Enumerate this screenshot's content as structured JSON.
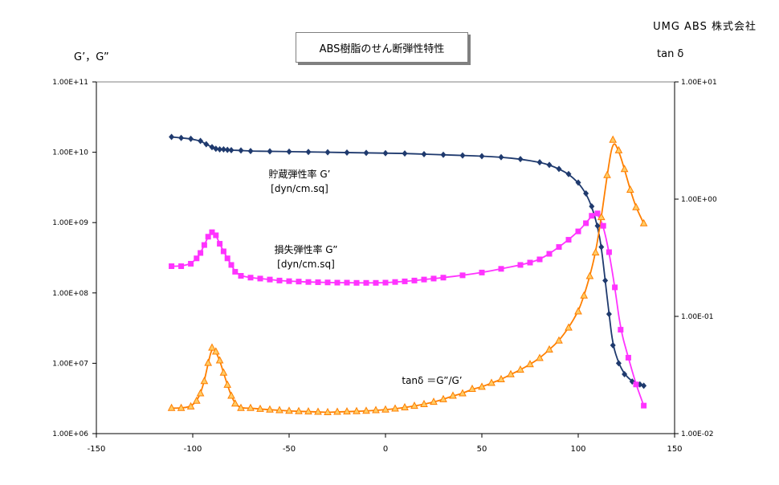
{
  "header": {
    "company": "UMG ABS 株式会社",
    "title": "ABS樹脂のせん断弾性特性",
    "left_axis_title": "G’，G”",
    "right_axis_title": "tan δ"
  },
  "chart_data": {
    "type": "scatter",
    "title": "ABS樹脂のせん断弾性特性",
    "xlim": [
      -150,
      150
    ],
    "x_ticks": [
      -150,
      -100,
      -50,
      0,
      50,
      100,
      150
    ],
    "x_tick_labels": [
      "-150",
      "-100",
      "-50",
      "0",
      "50",
      "100",
      "150"
    ],
    "y_left": {
      "label": "G’，G”",
      "scale": "log",
      "lim": [
        1000000,
        100000000000
      ],
      "ticks": [
        1000000,
        10000000,
        100000000,
        1000000000,
        10000000000,
        100000000000
      ],
      "tick_labels": [
        "1.00E+06",
        "1.00E+07",
        "1.00E+08",
        "1.00E+09",
        "1.00E+10",
        "1.00E+11"
      ]
    },
    "y_right": {
      "label": "tan δ",
      "scale": "log",
      "lim": [
        0.01,
        10
      ],
      "ticks": [
        0.01,
        0.1,
        1,
        10
      ],
      "tick_labels": [
        "1.00E-02",
        "1.00E-01",
        "1.00E+00",
        "1.00E+01"
      ]
    },
    "grid": false,
    "legend": "none",
    "annotations": [
      {
        "series": "storage",
        "lines": [
          "貯蔵弾性率 G’",
          "[dyn/cm.sq]"
        ]
      },
      {
        "series": "loss",
        "lines": [
          "損失弾性率 G”",
          "[dyn/cm.sq]"
        ]
      },
      {
        "series": "tand",
        "lines": [
          "tanδ ＝G”/G’"
        ]
      }
    ],
    "series": [
      {
        "key": "storage",
        "axis": "left",
        "marker": "diamond",
        "color": "#1f3a6e",
        "x": [
          -111,
          -106,
          -101,
          -96,
          -93,
          -90,
          -88,
          -86,
          -84,
          -82,
          -80,
          -75,
          -70,
          -60,
          -50,
          -40,
          -30,
          -20,
          -10,
          0,
          10,
          20,
          30,
          40,
          50,
          60,
          70,
          80,
          85,
          90,
          95,
          100,
          104,
          107,
          110,
          112,
          114,
          116,
          118,
          121,
          124,
          128,
          132,
          134
        ],
        "y": [
          16500000000.0,
          16000000000.0,
          15500000000.0,
          14500000000.0,
          13000000000.0,
          11800000000.0,
          11200000000.0,
          11000000000.0,
          11000000000.0,
          10800000000.0,
          10700000000.0,
          10600000000.0,
          10400000000.0,
          10300000000.0,
          10200000000.0,
          10100000000.0,
          10000000000.0,
          9900000000.0,
          9800000000.0,
          9700000000.0,
          9600000000.0,
          9400000000.0,
          9200000000.0,
          9000000000.0,
          8800000000.0,
          8500000000.0,
          8000000000.0,
          7200000000.0,
          6600000000.0,
          5800000000.0,
          4900000000.0,
          3700000000.0,
          2600000000.0,
          1700000000.0,
          900000000.0,
          450000000.0,
          150000000.0,
          50000000.0,
          18000000.0,
          10000000.0,
          7000000.0,
          5500000.0,
          5000000.0,
          4800000.0
        ]
      },
      {
        "key": "loss",
        "axis": "left",
        "marker": "square",
        "color": "#ff33ff",
        "x": [
          -111,
          -106,
          -101,
          -98,
          -96,
          -94,
          -92,
          -90,
          -88,
          -86,
          -84,
          -82,
          -80,
          -78,
          -75,
          -70,
          -65,
          -60,
          -55,
          -50,
          -45,
          -40,
          -35,
          -30,
          -25,
          -20,
          -15,
          -10,
          -5,
          0,
          5,
          10,
          15,
          20,
          25,
          30,
          40,
          50,
          60,
          70,
          75,
          80,
          85,
          90,
          95,
          100,
          104,
          107,
          110,
          113,
          116,
          119,
          122,
          126,
          130,
          134
        ],
        "y": [
          240000000.0,
          240000000.0,
          260000000.0,
          310000000.0,
          370000000.0,
          480000000.0,
          630000000.0,
          730000000.0,
          660000000.0,
          500000000.0,
          390000000.0,
          310000000.0,
          250000000.0,
          200000000.0,
          175000000.0,
          165000000.0,
          160000000.0,
          155000000.0,
          150000000.0,
          147000000.0,
          145000000.0,
          143000000.0,
          142000000.0,
          141000000.0,
          140000000.0,
          140000000.0,
          139000000.0,
          139000000.0,
          139000000.0,
          140000000.0,
          143000000.0,
          146000000.0,
          150000000.0,
          155000000.0,
          160000000.0,
          165000000.0,
          178000000.0,
          195000000.0,
          220000000.0,
          250000000.0,
          270000000.0,
          300000000.0,
          360000000.0,
          450000000.0,
          570000000.0,
          750000000.0,
          980000000.0,
          1250000000.0,
          1350000000.0,
          900000000.0,
          380000000.0,
          120000000.0,
          30000000.0,
          12000000.0,
          5000000.0,
          2500000.0
        ]
      },
      {
        "key": "tand",
        "axis": "right",
        "marker": "triangle",
        "color": "#ff7f00",
        "fill": "#ffcc66",
        "x": [
          -111,
          -106,
          -101,
          -98,
          -96,
          -94,
          -92,
          -90,
          -88,
          -86,
          -84,
          -82,
          -80,
          -78,
          -75,
          -70,
          -65,
          -60,
          -55,
          -50,
          -45,
          -40,
          -35,
          -30,
          -25,
          -20,
          -15,
          -10,
          -5,
          0,
          5,
          10,
          15,
          20,
          25,
          30,
          35,
          40,
          45,
          50,
          55,
          60,
          65,
          70,
          75,
          80,
          85,
          90,
          95,
          100,
          103,
          106,
          109,
          112,
          115,
          118,
          121,
          124,
          127,
          130,
          134
        ],
        "y": [
          0.0165,
          0.0165,
          0.017,
          0.019,
          0.022,
          0.028,
          0.04,
          0.054,
          0.05,
          0.042,
          0.033,
          0.026,
          0.021,
          0.018,
          0.0165,
          0.0165,
          0.0162,
          0.016,
          0.0158,
          0.0156,
          0.0155,
          0.0154,
          0.0153,
          0.0152,
          0.0153,
          0.0154,
          0.0155,
          0.0156,
          0.0158,
          0.016,
          0.0163,
          0.0167,
          0.0172,
          0.0178,
          0.0186,
          0.0196,
          0.021,
          0.022,
          0.024,
          0.025,
          0.027,
          0.029,
          0.032,
          0.035,
          0.039,
          0.044,
          0.052,
          0.062,
          0.08,
          0.11,
          0.15,
          0.22,
          0.35,
          0.7,
          1.6,
          3.2,
          2.6,
          1.8,
          1.2,
          0.85,
          0.62
        ]
      }
    ]
  }
}
